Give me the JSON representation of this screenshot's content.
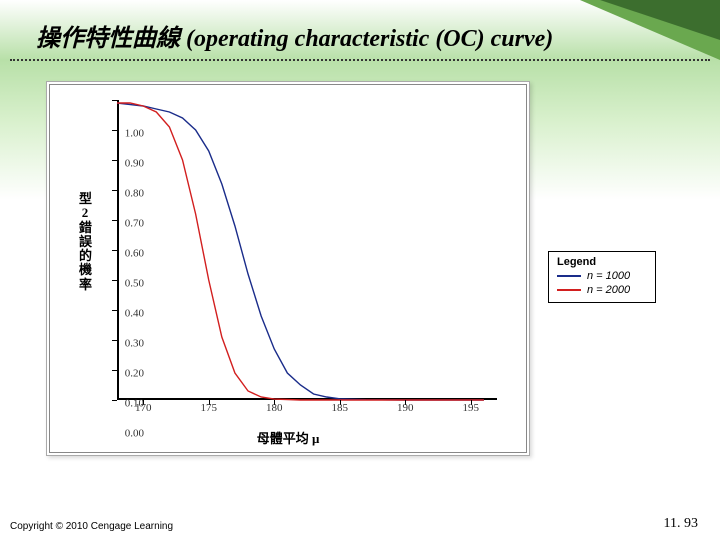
{
  "slide": {
    "title": "操作特性曲線 (operating characteristic (OC) curve)",
    "copyright": "Copyright © 2010 Cengage Learning",
    "page_number": "11. 93"
  },
  "chart": {
    "type": "line",
    "xlabel": "母體平均 μ",
    "ylabel_chars": [
      "型",
      "2",
      "錯",
      "誤",
      "的",
      "機",
      "率"
    ],
    "xlim": [
      168,
      197
    ],
    "ylim": [
      0.0,
      1.0
    ],
    "yticks": [
      0.0,
      0.1,
      0.2,
      0.3,
      0.4,
      0.5,
      0.6,
      0.7,
      0.8,
      0.9,
      1.0
    ],
    "xticks": [
      170,
      175,
      180,
      185,
      190,
      195
    ],
    "background_color": "#ffffff",
    "axis_color": "#000000",
    "tick_font_size": 11,
    "label_font_size": 13,
    "series": [
      {
        "name": "n = 1000",
        "color": "#1a2c8a",
        "width": 1.4,
        "points": [
          [
            168,
            0.99
          ],
          [
            170,
            0.98
          ],
          [
            171,
            0.97
          ],
          [
            172,
            0.96
          ],
          [
            173,
            0.94
          ],
          [
            174,
            0.9
          ],
          [
            175,
            0.83
          ],
          [
            176,
            0.72
          ],
          [
            177,
            0.58
          ],
          [
            178,
            0.42
          ],
          [
            179,
            0.28
          ],
          [
            180,
            0.17
          ],
          [
            181,
            0.09
          ],
          [
            182,
            0.05
          ],
          [
            183,
            0.02
          ],
          [
            184,
            0.01
          ],
          [
            185,
            0.004
          ],
          [
            187,
            0.001
          ],
          [
            190,
            0.0
          ],
          [
            196,
            0.0
          ]
        ]
      },
      {
        "name": "n = 2000",
        "color": "#d21f1f",
        "width": 1.4,
        "points": [
          [
            168,
            0.99
          ],
          [
            169,
            0.99
          ],
          [
            170,
            0.98
          ],
          [
            171,
            0.96
          ],
          [
            172,
            0.91
          ],
          [
            173,
            0.8
          ],
          [
            174,
            0.62
          ],
          [
            175,
            0.4
          ],
          [
            176,
            0.21
          ],
          [
            177,
            0.09
          ],
          [
            178,
            0.03
          ],
          [
            179,
            0.01
          ],
          [
            180,
            0.003
          ],
          [
            182,
            0.0
          ],
          [
            190,
            0.0
          ],
          [
            196,
            0.0
          ]
        ]
      }
    ]
  },
  "legend": {
    "title": "Legend",
    "items": [
      {
        "label": "n = 1000",
        "color": "#1a2c8a"
      },
      {
        "label": "n = 2000",
        "color": "#d21f1f"
      }
    ]
  }
}
